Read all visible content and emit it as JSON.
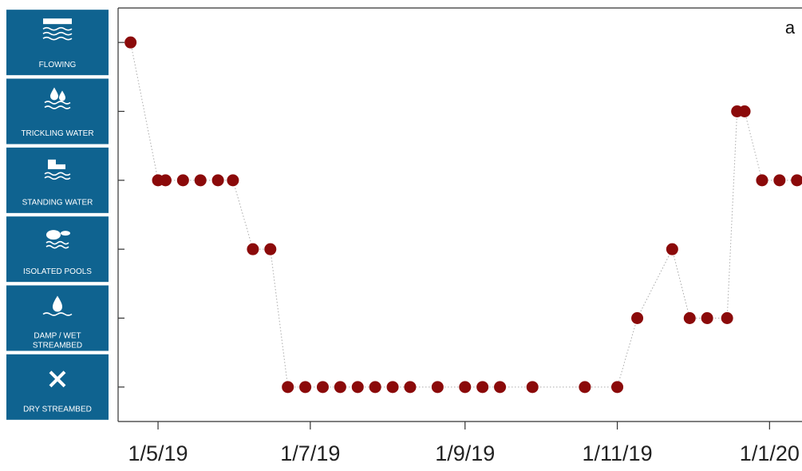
{
  "chart_data": {
    "type": "scatter",
    "annotation": "a",
    "x": [
      "2019-04-20",
      "2019-05-01",
      "2019-05-04",
      "2019-05-11",
      "2019-05-18",
      "2019-05-25",
      "2019-05-31",
      "2019-06-08",
      "2019-06-15",
      "2019-06-22",
      "2019-06-29",
      "2019-07-06",
      "2019-07-13",
      "2019-07-20",
      "2019-07-27",
      "2019-08-03",
      "2019-08-10",
      "2019-08-21",
      "2019-09-01",
      "2019-09-08",
      "2019-09-15",
      "2019-09-28",
      "2019-10-19",
      "2019-11-01",
      "2019-11-09",
      "2019-11-23",
      "2019-11-30",
      "2019-12-07",
      "2019-12-15",
      "2019-12-19",
      "2019-12-22",
      "2019-12-29",
      "2020-01-05",
      "2020-01-12"
    ],
    "series": [
      {
        "color": "#8b0a0a",
        "values": [
          5,
          3,
          3,
          3,
          3,
          3,
          3,
          2,
          2,
          0,
          0,
          0,
          0,
          0,
          0,
          0,
          0,
          0,
          0,
          0,
          0,
          0,
          0,
          0,
          1,
          2,
          1,
          1,
          1,
          4,
          4,
          3,
          3,
          3
        ]
      }
    ],
    "xlim": [
      "2019-04-15",
      "2020-01-14"
    ],
    "xticks": [
      {
        "value": "2019-05-01",
        "label": "1/5/19"
      },
      {
        "value": "2019-07-01",
        "label": "1/7/19"
      },
      {
        "value": "2019-09-01",
        "label": "1/9/19"
      },
      {
        "value": "2019-11-01",
        "label": "1/11/19"
      },
      {
        "value": "2020-01-01",
        "label": "1/1/20"
      }
    ],
    "ylim": [
      -0.5,
      5.5
    ],
    "yticks": [
      {
        "value": 0,
        "label": "DRY STREAMBED"
      },
      {
        "value": 1,
        "label": "DAMP / WET STREAMBED"
      },
      {
        "value": 2,
        "label": "ISOLATED POOLS"
      },
      {
        "value": 3,
        "label": "STANDING WATER"
      },
      {
        "value": 4,
        "label": "TRICKLING WATER"
      },
      {
        "value": 5,
        "label": "FLOWING"
      }
    ],
    "connect": true
  }
}
